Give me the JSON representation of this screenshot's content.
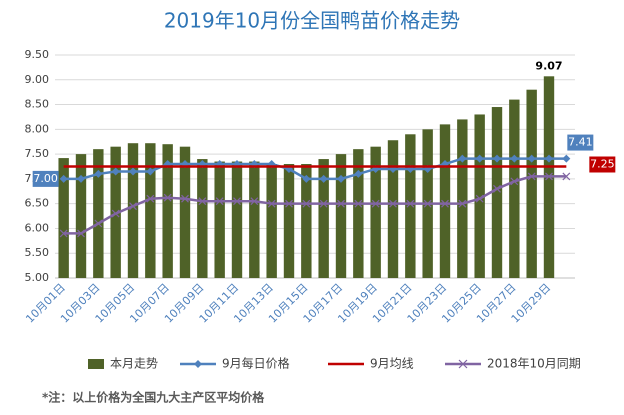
{
  "chart_data": {
    "type": "bar_line",
    "title": "2019年10月份全国鸭苗价格走势",
    "footnote": "*注：以上价格为全国九大主产区平均价格",
    "categories": [
      "10月01日",
      null,
      "10月03日",
      null,
      "10月05日",
      null,
      "10月07日",
      null,
      "10月09日",
      null,
      "10月11日",
      null,
      "10月13日",
      null,
      "10月15日",
      null,
      "10月17日",
      null,
      "10月19日",
      null,
      "10月21日",
      null,
      "10月23日",
      null,
      "10月25日",
      null,
      "10月27日",
      null,
      "10月29日",
      null
    ],
    "ylim": [
      5,
      9.5
    ],
    "yticks": [
      {
        "value": 5,
        "label": "5.00"
      },
      {
        "value": 5.5,
        "label": "5.50"
      },
      {
        "value": 6,
        "label": "6.00"
      },
      {
        "value": 6.5,
        "label": "6.50"
      },
      {
        "value": 7,
        "label": "7.00"
      },
      {
        "value": 7.5,
        "label": "7.50"
      },
      {
        "value": 8,
        "label": "8.00"
      },
      {
        "value": 8.5,
        "label": "8.50"
      },
      {
        "value": 9,
        "label": "9.00"
      },
      {
        "value": 9.5,
        "label": "9.50"
      }
    ],
    "grid": true,
    "series": [
      {
        "name": "本月走势",
        "type": "bar",
        "color": "#4f6228",
        "values": [
          7.42,
          7.5,
          7.6,
          7.65,
          7.72,
          7.72,
          7.7,
          7.65,
          7.4,
          7.35,
          7.35,
          7.35,
          7.3,
          7.3,
          7.3,
          7.4,
          7.5,
          7.6,
          7.65,
          7.78,
          7.9,
          8.0,
          8.1,
          8.2,
          8.3,
          8.45,
          8.6,
          8.8,
          9.07,
          null
        ],
        "value_labels": [
          null,
          null,
          null,
          null,
          null,
          null,
          null,
          null,
          null,
          null,
          null,
          null,
          null,
          null,
          null,
          null,
          null,
          null,
          null,
          null,
          null,
          null,
          null,
          null,
          null,
          null,
          null,
          null,
          "9.07",
          null
        ]
      },
      {
        "name": "9月每日价格",
        "type": "line",
        "marker": "diamond",
        "color": "#4f81bd",
        "values": [
          7.0,
          7.0,
          7.1,
          7.15,
          7.15,
          7.15,
          7.3,
          7.3,
          7.3,
          7.3,
          7.3,
          7.3,
          7.3,
          7.2,
          7.0,
          7.0,
          7.0,
          7.1,
          7.2,
          7.2,
          7.2,
          7.2,
          7.3,
          7.41,
          7.41,
          7.41,
          7.41,
          7.41,
          7.41,
          7.41
        ],
        "value_labels": [
          "7.00",
          null,
          null,
          null,
          null,
          null,
          null,
          null,
          null,
          null,
          null,
          null,
          null,
          null,
          null,
          null,
          null,
          null,
          null,
          null,
          null,
          null,
          null,
          null,
          null,
          null,
          null,
          null,
          null,
          "7.41"
        ]
      },
      {
        "name": "9月均线",
        "type": "line",
        "marker": "none",
        "color": "#c00000",
        "values": [
          7.25,
          7.25,
          7.25,
          7.25,
          7.25,
          7.25,
          7.25,
          7.25,
          7.25,
          7.25,
          7.25,
          7.25,
          7.25,
          7.25,
          7.25,
          7.25,
          7.25,
          7.25,
          7.25,
          7.25,
          7.25,
          7.25,
          7.25,
          7.25,
          7.25,
          7.25,
          7.25,
          7.25,
          7.25,
          7.25
        ],
        "value_labels": [
          null,
          null,
          null,
          null,
          null,
          null,
          null,
          null,
          null,
          null,
          null,
          null,
          null,
          null,
          null,
          null,
          null,
          null,
          null,
          null,
          null,
          null,
          null,
          null,
          null,
          null,
          null,
          null,
          null,
          "7.25"
        ]
      },
      {
        "name": "2018年10月同期",
        "type": "line",
        "marker": "x",
        "color": "#8064a2",
        "values": [
          5.9,
          5.9,
          6.1,
          6.3,
          6.45,
          6.6,
          6.62,
          6.6,
          6.55,
          6.55,
          6.55,
          6.55,
          6.5,
          6.5,
          6.5,
          6.5,
          6.5,
          6.5,
          6.5,
          6.5,
          6.5,
          6.5,
          6.5,
          6.5,
          6.6,
          6.8,
          6.95,
          7.05,
          7.05,
          7.05
        ]
      }
    ]
  }
}
